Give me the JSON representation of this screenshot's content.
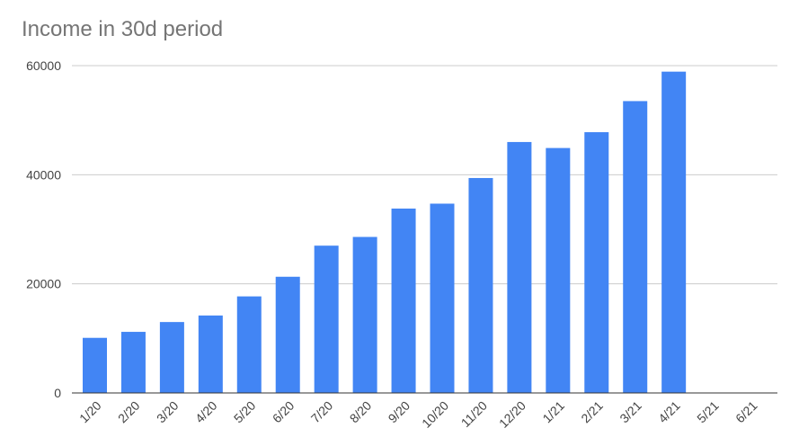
{
  "chart_data": {
    "type": "bar",
    "title": "Income in 30d period",
    "xlabel": "",
    "ylabel": "",
    "categories": [
      "1/20",
      "2/20",
      "3/20",
      "4/20",
      "5/20",
      "6/20",
      "7/20",
      "8/20",
      "9/20",
      "10/20",
      "11/20",
      "12/20",
      "1/21",
      "2/21",
      "3/21",
      "4/21",
      "5/21",
      "6/21"
    ],
    "series": [
      {
        "values": [
          10100,
          11200,
          13000,
          14200,
          17700,
          21300,
          27000,
          28600,
          33800,
          34700,
          39400,
          46000,
          44900,
          47800,
          53500,
          58900,
          0,
          0
        ]
      }
    ],
    "ylim": [
      0,
      60000
    ],
    "yticks": [
      0,
      20000,
      40000,
      60000
    ],
    "ytick_labels": [
      "0",
      "20000",
      "40000",
      "60000"
    ],
    "grid": true,
    "legend": "none",
    "colors": {
      "bar": "#4285f4"
    }
  }
}
